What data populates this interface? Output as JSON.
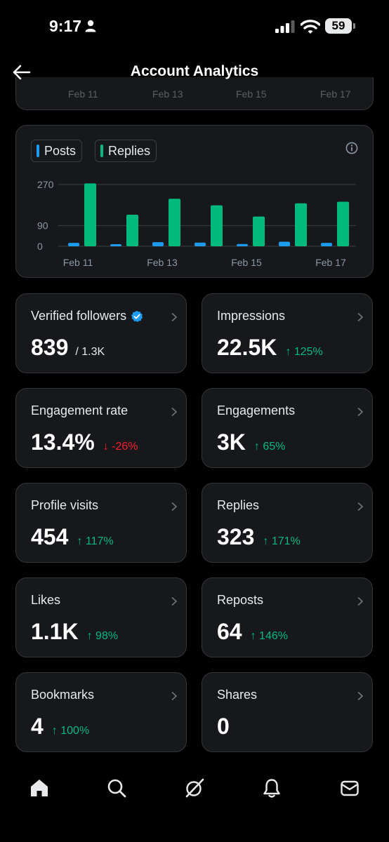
{
  "status_bar": {
    "time": "9:17",
    "battery": "59"
  },
  "header": {
    "title": "Account Analytics"
  },
  "prev_chart": {
    "x_labels": [
      "Feb 11",
      "Feb 13",
      "Feb 15",
      "Feb 17"
    ]
  },
  "legend": {
    "posts": "Posts",
    "replies": "Replies"
  },
  "chart_data": {
    "type": "bar",
    "categories": [
      "Feb 11",
      "Feb 12",
      "Feb 13",
      "Feb 14",
      "Feb 15",
      "Feb 16",
      "Feb 17"
    ],
    "x_tick_labels": [
      "Feb 11",
      "Feb 13",
      "Feb 15",
      "Feb 17"
    ],
    "y_ticks": [
      "270",
      "90",
      "0"
    ],
    "ylim": [
      0,
      270
    ],
    "grid": true,
    "series": [
      {
        "name": "Posts",
        "color": "#1d9bf0",
        "values": [
          15,
          6,
          18,
          16,
          10,
          20,
          15
        ]
      },
      {
        "name": "Replies",
        "color": "#00ba7c",
        "values": [
          275,
          138,
          208,
          179,
          130,
          188,
          195
        ]
      }
    ]
  },
  "metrics": {
    "verified_followers": {
      "label": "Verified followers",
      "value": "839",
      "total": "/ 1.3K"
    },
    "impressions": {
      "label": "Impressions",
      "value": "22.5K",
      "change": "↑ 125%"
    },
    "engagement_rate": {
      "label": "Engagement rate",
      "value": "13.4%",
      "change": "↓ -26%"
    },
    "engagements": {
      "label": "Engagements",
      "value": "3K",
      "change": "↑ 65%"
    },
    "profile_visits": {
      "label": "Profile visits",
      "value": "454",
      "change": "↑ 117%"
    },
    "replies": {
      "label": "Replies",
      "value": "323",
      "change": "↑ 171%"
    },
    "likes": {
      "label": "Likes",
      "value": "1.1K",
      "change": "↑ 98%"
    },
    "reposts": {
      "label": "Reposts",
      "value": "64",
      "change": "↑ 146%"
    },
    "bookmarks": {
      "label": "Bookmarks",
      "value": "4",
      "change": "↑ 100%"
    },
    "shares": {
      "label": "Shares",
      "value": "0"
    }
  },
  "tab_bar": [
    "home-icon",
    "search-icon",
    "grok-icon",
    "notifications-icon",
    "messages-icon"
  ],
  "colors": {
    "up": "#00ba7c",
    "down": "#f4212e",
    "posts": "#1d9bf0",
    "replies": "#00ba7c",
    "verified": "#1d9bf0"
  }
}
